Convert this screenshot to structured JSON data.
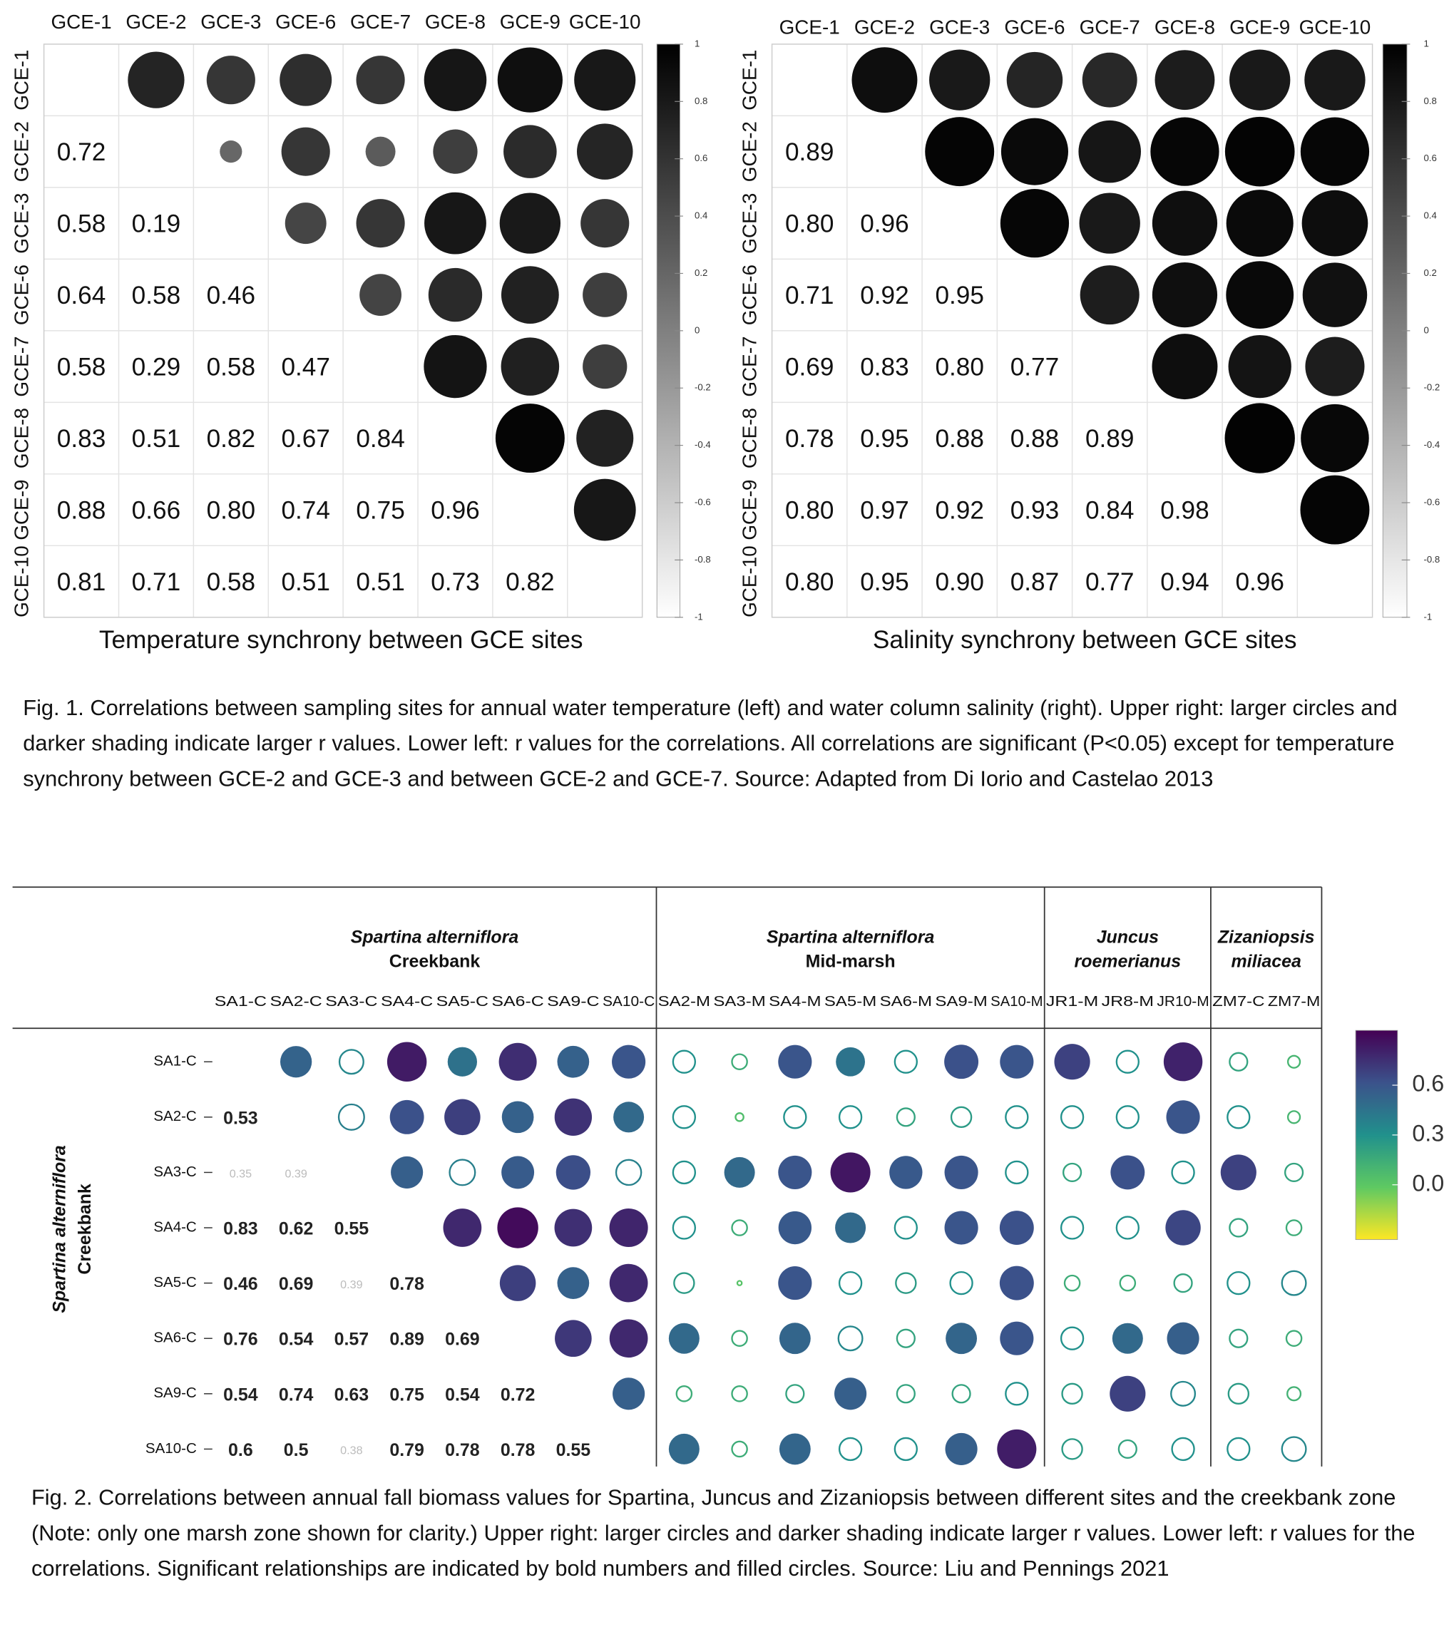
{
  "captions": [
    "Fig. 1. Correlations between sampling sites for annual water temperature (left) and water column salinity (right). Upper right: larger circles and darker shading indicate larger r values. Lower left: r values for the correlations. All correlations are significant (P<0.05) except for temperature synchrony between GCE-2 and GCE-3 and between GCE-2 and GCE-7. Source: Adapted from Di Iorio and Castelao 2013",
    "Fig. 2. Correlations between annual fall biomass values for Spartina, Juncus and Zizaniopsis between different sites and the creekbank zone (Note: only one marsh zone shown for clarity.) Upper right: larger circles and darker shading indicate larger r values. Lower left: r values for the correlations. Significant relationships are indicated by bold numbers and filled circles. Source: Liu and Pennings 2021"
  ],
  "chart_data": [
    {
      "type": "correlogram",
      "title": "Temperature synchrony between GCE sites",
      "categories": [
        "GCE-1",
        "GCE-2",
        "GCE-3",
        "GCE-6",
        "GCE-7",
        "GCE-8",
        "GCE-9",
        "GCE-10"
      ],
      "values": [
        [],
        [
          0.72
        ],
        [
          0.58,
          0.19
        ],
        [
          0.64,
          0.58,
          0.46
        ],
        [
          0.58,
          0.29,
          0.58,
          0.47
        ],
        [
          0.83,
          0.51,
          0.82,
          0.67,
          0.84
        ],
        [
          0.88,
          0.66,
          0.8,
          0.74,
          0.75,
          0.96
        ],
        [
          0.81,
          0.71,
          0.58,
          0.51,
          0.51,
          0.73,
          0.82
        ]
      ],
      "value_labels": [
        [],
        [
          "0.72"
        ],
        [
          "0.58",
          "0.19"
        ],
        [
          "0.64",
          "0.58",
          "0.46"
        ],
        [
          "0.58",
          "0.29",
          "0.58",
          "0.47"
        ],
        [
          "0.83",
          "0.51",
          "0.82",
          "0.67",
          "0.84"
        ],
        [
          "0.88",
          "0.66",
          "0.80",
          "0.74",
          "0.75",
          "0.96"
        ],
        [
          "0.81",
          "0.71",
          "0.58",
          "0.51",
          "0.51",
          "0.73",
          "0.82"
        ]
      ],
      "colormap": "gray",
      "ylim": [
        -1,
        1
      ],
      "yticks": [
        1,
        0.8,
        0.6,
        0.4,
        0.2,
        0,
        -0.2,
        -0.4,
        -0.6,
        -0.8,
        -1
      ]
    },
    {
      "type": "correlogram",
      "title": "Salinity synchrony between GCE sites",
      "categories": [
        "GCE-1",
        "GCE-2",
        "GCE-3",
        "GCE-6",
        "GCE-7",
        "GCE-8",
        "GCE-9",
        "GCE-10"
      ],
      "values": [
        [],
        [
          0.89
        ],
        [
          0.8,
          0.96
        ],
        [
          0.71,
          0.92,
          0.95
        ],
        [
          0.69,
          0.83,
          0.8,
          0.77
        ],
        [
          0.78,
          0.95,
          0.88,
          0.88,
          0.89
        ],
        [
          0.8,
          0.97,
          0.92,
          0.93,
          0.84,
          0.98
        ],
        [
          0.8,
          0.95,
          0.9,
          0.87,
          0.77,
          0.94,
          0.96
        ]
      ],
      "value_labels": [
        [],
        [
          "0.89"
        ],
        [
          "0.80",
          "0.96"
        ],
        [
          "0.71",
          "0.92",
          "0.95"
        ],
        [
          "0.69",
          "0.83",
          "0.80",
          "0.77"
        ],
        [
          "0.78",
          "0.95",
          "0.88",
          "0.88",
          "0.89"
        ],
        [
          "0.80",
          "0.97",
          "0.92",
          "0.93",
          "0.84",
          "0.98"
        ],
        [
          "0.80",
          "0.95",
          "0.90",
          "0.87",
          "0.77",
          "0.94",
          "0.96"
        ]
      ],
      "colormap": "gray",
      "ylim": [
        -1,
        1
      ],
      "yticks": [
        1,
        0.8,
        0.6,
        0.4,
        0.2,
        0,
        -0.2,
        -0.4,
        -0.6,
        -0.8,
        -1
      ]
    },
    {
      "type": "correlogram-groups",
      "column_groups": [
        {
          "title": [
            "Spartina  alterniflora",
            "Creekbank"
          ],
          "categories": [
            "SA1-C",
            "SA2-C",
            "SA3-C",
            "SA4-C",
            "SA5-C",
            "SA6-C",
            "SA9-C",
            "SA10-C"
          ]
        },
        {
          "title": [
            "Spartina  alterniflora",
            "Mid-marsh"
          ],
          "categories": [
            "SA2-M",
            "SA3-M",
            "SA4-M",
            "SA5-M",
            "SA6-M",
            "SA9-M",
            "SA10-M"
          ]
        },
        {
          "title": [
            "Juncus",
            "roemerianus"
          ],
          "categories": [
            "JR1-M",
            "JR8-M",
            "JR10-M"
          ]
        },
        {
          "title": [
            "Zizaniopsis",
            "miliacea"
          ],
          "categories": [
            "ZM7-C",
            "ZM7-M"
          ]
        }
      ],
      "row_title": [
        "Spartina alterniflora",
        "Creekbank"
      ],
      "categories": [
        "SA1-C",
        "SA2-C",
        "SA3-C",
        "SA4-C",
        "SA5-C",
        "SA6-C",
        "SA9-C",
        "SA10-C"
      ],
      "values": [
        [
          null,
          null,
          null,
          null,
          null,
          null,
          null,
          null,
          0.3,
          0.15,
          0.6,
          0.45,
          0.3,
          0.62,
          0.6,
          0.68,
          0.3,
          0.8,
          0.2,
          0.1
        ],
        [
          0.53,
          null,
          null,
          null,
          null,
          null,
          null,
          null,
          0.3,
          0.05,
          0.3,
          0.3,
          0.2,
          0.25,
          0.3,
          0.3,
          0.3,
          0.6,
          0.3,
          0.1
        ],
        [
          0.35,
          0.39,
          null,
          null,
          null,
          null,
          null,
          null,
          0.3,
          0.5,
          0.6,
          0.85,
          0.58,
          0.6,
          0.3,
          0.2,
          0.62,
          0.3,
          0.68,
          0.2
        ],
        [
          0.83,
          0.62,
          0.55,
          null,
          null,
          null,
          null,
          null,
          0.3,
          0.15,
          0.58,
          0.5,
          0.3,
          0.6,
          0.62,
          0.3,
          0.3,
          0.66,
          0.2,
          0.15
        ],
        [
          0.46,
          0.69,
          0.39,
          0.78,
          null,
          null,
          null,
          null,
          0.25,
          0.02,
          0.6,
          0.3,
          0.25,
          0.3,
          0.62,
          0.15,
          0.15,
          0.2,
          0.3,
          0.35
        ],
        [
          0.76,
          0.54,
          0.57,
          0.89,
          0.69,
          null,
          null,
          null,
          0.5,
          0.15,
          0.52,
          0.35,
          0.2,
          0.52,
          0.6,
          0.3,
          0.5,
          0.55,
          0.2,
          0.15
        ],
        [
          0.54,
          0.74,
          0.63,
          0.75,
          0.54,
          0.72,
          null,
          null,
          0.15,
          0.15,
          0.2,
          0.55,
          0.2,
          0.2,
          0.3,
          0.25,
          0.68,
          0.35,
          0.25,
          0.12
        ],
        [
          0.6,
          0.5,
          0.38,
          0.79,
          0.78,
          0.78,
          0.55,
          null,
          0.5,
          0.15,
          0.52,
          0.3,
          0.3,
          0.55,
          0.82,
          0.25,
          0.2,
          0.3,
          0.3,
          0.35
        ]
      ],
      "filled": [
        [
          null,
          null,
          null,
          null,
          null,
          null,
          null,
          null,
          false,
          false,
          true,
          true,
          false,
          true,
          true,
          true,
          false,
          true,
          false,
          false
        ],
        [
          true,
          null,
          null,
          null,
          null,
          null,
          null,
          null,
          false,
          false,
          false,
          false,
          false,
          false,
          false,
          false,
          false,
          true,
          false,
          false
        ],
        [
          false,
          false,
          null,
          null,
          null,
          null,
          null,
          null,
          false,
          true,
          true,
          true,
          true,
          true,
          false,
          false,
          true,
          false,
          true,
          false
        ],
        [
          true,
          true,
          true,
          null,
          null,
          null,
          null,
          null,
          false,
          false,
          true,
          true,
          false,
          true,
          true,
          false,
          false,
          true,
          false,
          false
        ],
        [
          true,
          true,
          false,
          true,
          null,
          null,
          null,
          null,
          false,
          false,
          true,
          false,
          false,
          false,
          true,
          false,
          false,
          false,
          false,
          false
        ],
        [
          true,
          true,
          true,
          true,
          true,
          null,
          null,
          null,
          true,
          false,
          true,
          false,
          false,
          true,
          true,
          false,
          true,
          true,
          false,
          false
        ],
        [
          true,
          true,
          true,
          true,
          true,
          true,
          null,
          null,
          false,
          false,
          false,
          true,
          false,
          false,
          false,
          false,
          true,
          false,
          false,
          false
        ],
        [
          true,
          true,
          false,
          true,
          true,
          true,
          true,
          null,
          true,
          false,
          true,
          false,
          false,
          true,
          true,
          false,
          false,
          false,
          false,
          false
        ]
      ],
      "colormap": "viridis",
      "ylim": [
        -0.33,
        0.93
      ],
      "yticks": [
        0.6,
        0.3,
        {
          "value": 0,
          "label": "0.0"
        }
      ]
    }
  ]
}
